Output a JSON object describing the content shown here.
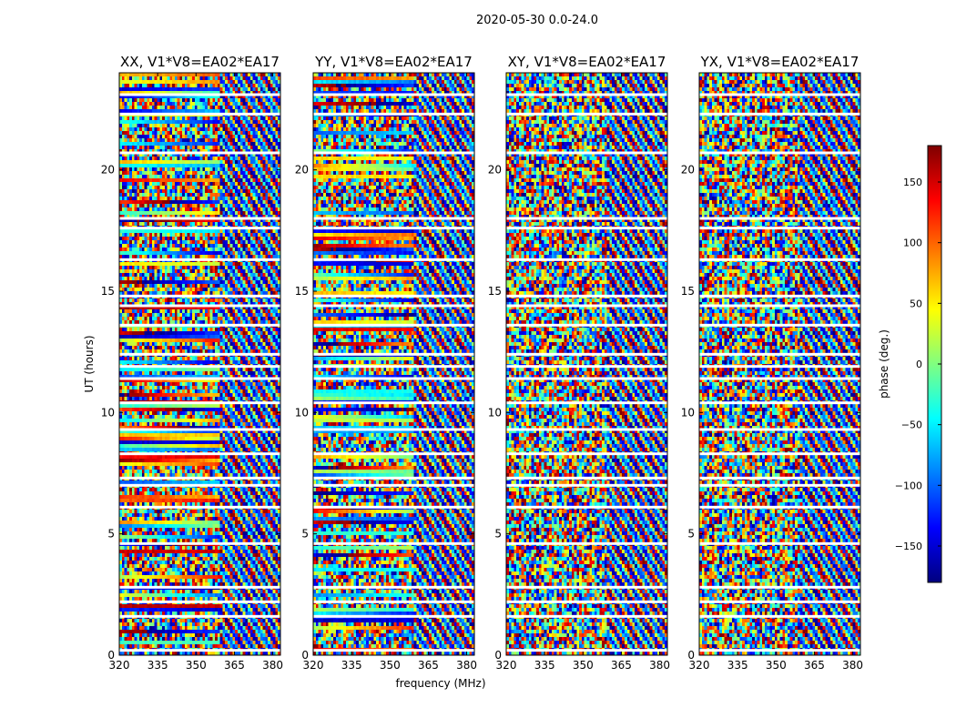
{
  "figure_title": "2020-05-30 0.0-24.0",
  "chart_data": {
    "type": "heatmap",
    "title": "2020-05-30 0.0-24.0",
    "xlabel": "frequency (MHz)",
    "ylabel": "UT (hours)",
    "xlim": [
      320,
      383
    ],
    "ylim": [
      0,
      24
    ],
    "x_ticks": [
      320,
      335,
      350,
      365,
      380
    ],
    "x_tick_labels": [
      "320",
      "335",
      "350",
      "365",
      "380"
    ],
    "y_ticks": [
      0,
      5,
      10,
      15,
      20
    ],
    "y_tick_labels": [
      "0",
      "5",
      "10",
      "15",
      "20"
    ],
    "panels": [
      {
        "title": "XX, V1*V8=EA02*EA17",
        "pol": "XX"
      },
      {
        "title": "YY, V1*V8=EA02*EA17",
        "pol": "YY"
      },
      {
        "title": "XY, V1*V8=EA02*EA17",
        "pol": "XY"
      },
      {
        "title": "YX, V1*V8=EA02*EA17",
        "pol": "YX"
      }
    ],
    "gap_hours": [
      23.1,
      22.3,
      20.7,
      18.0,
      17.6,
      16.3,
      14.8,
      14.4,
      13.6,
      12.4,
      11.9,
      11.4,
      10.4,
      9.3,
      8.3,
      7.3,
      7.0,
      6.1,
      4.6,
      2.8,
      2.2,
      1.6,
      0.2
    ],
    "colorbar": {
      "label": "phase (deg.)",
      "range": [
        -180,
        180
      ],
      "colormap": "jet",
      "ticks": [
        150,
        100,
        50,
        0,
        -50,
        -100,
        -150
      ],
      "tick_labels": [
        "150",
        "100",
        "50",
        "0",
        "−50",
        "−100",
        "−150"
      ],
      "stops": [
        "#00007f",
        "#0000ff",
        "#0080ff",
        "#00ffff",
        "#80ff80",
        "#ffff00",
        "#ff8000",
        "#ff0000",
        "#7f0000"
      ]
    }
  }
}
